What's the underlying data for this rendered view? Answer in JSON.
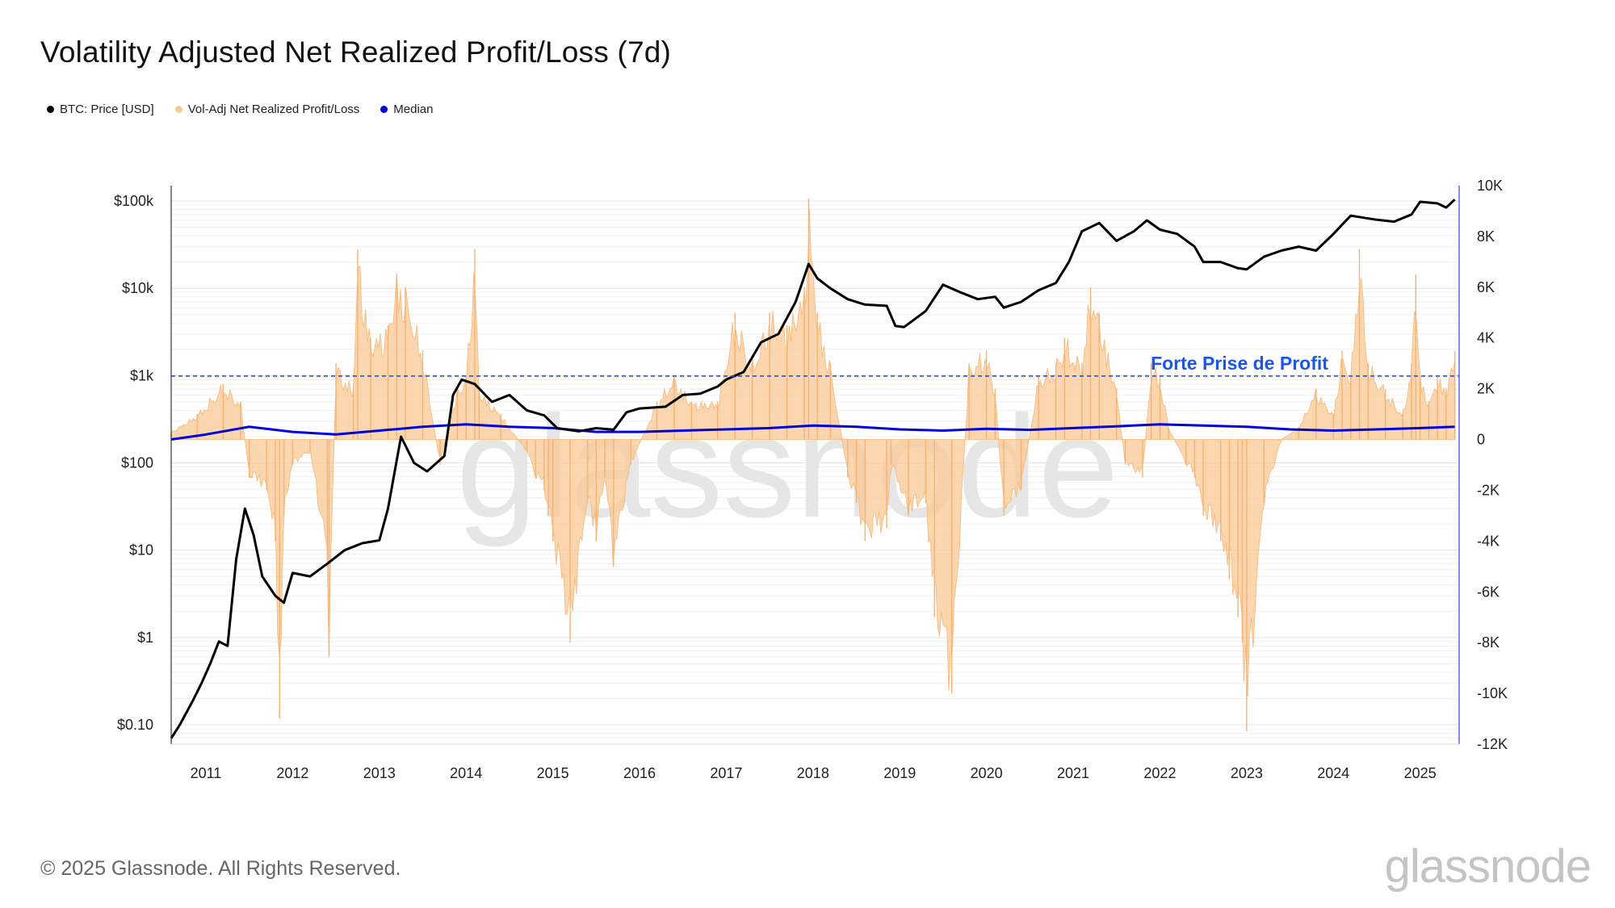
{
  "title": "Volatility Adjusted Net Realized Profit/Loss (7d)",
  "legend": [
    {
      "label": "BTC: Price [USD]",
      "color": "#000000"
    },
    {
      "label": "Vol-Adj Net Realized Profit/Loss",
      "color": "#f9c893"
    },
    {
      "label": "Median",
      "color": "#0000dd"
    }
  ],
  "footer": "© 2025 Glassnode. All Rights Reserved.",
  "brand": "glassnode",
  "watermark": "glassnode",
  "chart_data": {
    "type": "line",
    "x_range": [
      2010.6,
      2025.45
    ],
    "x_ticks": [
      "2011",
      "2012",
      "2013",
      "2014",
      "2015",
      "2016",
      "2017",
      "2018",
      "2019",
      "2020",
      "2021",
      "2022",
      "2023",
      "2024",
      "2025"
    ],
    "y_left": {
      "scale": "log",
      "range": [
        0.06,
        150000
      ],
      "ticks": [
        {
          "value": 0.1,
          "label": "$0.10"
        },
        {
          "value": 1,
          "label": "$1"
        },
        {
          "value": 10,
          "label": "$10"
        },
        {
          "value": 100,
          "label": "$100"
        },
        {
          "value": 1000,
          "label": "$1k"
        },
        {
          "value": 10000,
          "label": "$10k"
        },
        {
          "value": 100000,
          "label": "$100k"
        }
      ]
    },
    "y_right": {
      "scale": "linear",
      "range": [
        -12000,
        10000
      ],
      "ticks": [
        {
          "value": 10000,
          "label": "10K"
        },
        {
          "value": 8000,
          "label": "8K"
        },
        {
          "value": 6000,
          "label": "6K"
        },
        {
          "value": 4000,
          "label": "4K"
        },
        {
          "value": 2000,
          "label": "2K"
        },
        {
          "value": 0,
          "label": "0"
        },
        {
          "value": -2000,
          "label": "-2K"
        },
        {
          "value": -4000,
          "label": "-4K"
        },
        {
          "value": -6000,
          "label": "-6K"
        },
        {
          "value": -8000,
          "label": "-8K"
        },
        {
          "value": -10000,
          "label": "-10K"
        },
        {
          "value": -12000,
          "label": "-12K"
        }
      ]
    },
    "annotation": {
      "label": "Forte Prise de Profit",
      "y_value": 2500,
      "color": "#1a56e8"
    },
    "series": [
      {
        "name": "BTC: Price [USD]",
        "axis": "left",
        "color": "#000000",
        "x": [
          2010.6,
          2010.7,
          2010.85,
          2010.95,
          2011.05,
          2011.15,
          2011.25,
          2011.35,
          2011.45,
          2011.55,
          2011.65,
          2011.8,
          2011.9,
          2012.0,
          2012.2,
          2012.4,
          2012.6,
          2012.8,
          2013.0,
          2013.1,
          2013.25,
          2013.4,
          2013.55,
          2013.75,
          2013.85,
          2013.95,
          2014.1,
          2014.3,
          2014.5,
          2014.7,
          2014.9,
          2015.05,
          2015.3,
          2015.5,
          2015.7,
          2015.85,
          2016.0,
          2016.3,
          2016.5,
          2016.7,
          2016.9,
          2017.0,
          2017.2,
          2017.4,
          2017.6,
          2017.8,
          2017.95,
          2018.05,
          2018.2,
          2018.4,
          2018.6,
          2018.85,
          2018.95,
          2019.05,
          2019.3,
          2019.5,
          2019.7,
          2019.9,
          2020.1,
          2020.2,
          2020.4,
          2020.6,
          2020.8,
          2020.95,
          2021.1,
          2021.3,
          2021.5,
          2021.7,
          2021.85,
          2022.0,
          2022.2,
          2022.4,
          2022.5,
          2022.7,
          2022.9,
          2023.0,
          2023.2,
          2023.4,
          2023.6,
          2023.8,
          2024.0,
          2024.2,
          2024.5,
          2024.7,
          2024.9,
          2025.0,
          2025.2,
          2025.3,
          2025.4
        ],
        "values": [
          0.07,
          0.1,
          0.19,
          0.3,
          0.5,
          0.9,
          0.8,
          8,
          30,
          15,
          5,
          3,
          2.5,
          5.5,
          5,
          7,
          10,
          12,
          13,
          30,
          200,
          100,
          80,
          120,
          600,
          900,
          800,
          500,
          600,
          400,
          350,
          250,
          230,
          250,
          240,
          380,
          420,
          440,
          600,
          620,
          750,
          900,
          1100,
          2400,
          3000,
          7000,
          19000,
          13000,
          10000,
          7500,
          6500,
          6300,
          3700,
          3600,
          5500,
          11000,
          9000,
          7500,
          8000,
          6000,
          7000,
          9500,
          11500,
          20000,
          45000,
          56000,
          35000,
          45000,
          60000,
          47000,
          42000,
          30000,
          20000,
          20000,
          17000,
          16500,
          23000,
          27000,
          30000,
          27000,
          42000,
          68000,
          61000,
          58000,
          70000,
          98000,
          94000,
          84000,
          104000
        ]
      },
      {
        "name": "Vol-Adj Net Realized Profit/Loss",
        "axis": "right",
        "color": "#f9c893",
        "x": [
          2010.6,
          2010.9,
          2011.2,
          2011.4,
          2011.5,
          2011.7,
          2011.8,
          2011.85,
          2011.9,
          2012.0,
          2012.2,
          2012.4,
          2012.42,
          2012.5,
          2012.7,
          2012.75,
          2012.9,
          2013.1,
          2013.2,
          2013.3,
          2013.5,
          2013.7,
          2013.9,
          2014.0,
          2014.1,
          2014.15,
          2014.4,
          2014.7,
          2014.8,
          2014.9,
          2014.95,
          2015.0,
          2015.2,
          2015.4,
          2015.5,
          2015.6,
          2015.7,
          2015.9,
          2016.2,
          2016.4,
          2016.6,
          2016.9,
          2017.1,
          2017.3,
          2017.5,
          2017.7,
          2017.9,
          2017.95,
          2018.05,
          2018.2,
          2018.4,
          2018.5,
          2018.6,
          2018.85,
          2018.9,
          2019.1,
          2019.3,
          2019.4,
          2019.6,
          2019.8,
          2020.0,
          2020.1,
          2020.2,
          2020.4,
          2020.6,
          2020.8,
          2020.9,
          2021.1,
          2021.2,
          2021.3,
          2021.5,
          2021.6,
          2021.8,
          2021.9,
          2022.0,
          2022.1,
          2022.3,
          2022.4,
          2022.5,
          2022.7,
          2022.8,
          2022.9,
          2022.95,
          2023.0,
          2023.2,
          2023.4,
          2023.6,
          2023.8,
          2024.0,
          2024.1,
          2024.2,
          2024.3,
          2024.4,
          2024.6,
          2024.8,
          2024.9,
          2024.95,
          2025.0,
          2025.1,
          2025.2,
          2025.3,
          2025.4
        ],
        "values": [
          300,
          1000,
          2200,
          1500,
          -1500,
          -2000,
          -4000,
          -11000,
          -3000,
          -1000,
          -500,
          -5000,
          -8500,
          3000,
          2000,
          7500,
          4000,
          4500,
          6500,
          6000,
          3500,
          -1000,
          2000,
          2500,
          7500,
          2000,
          1000,
          -500,
          -1500,
          -2000,
          -3000,
          -4000,
          -8000,
          -2500,
          -4000,
          -1500,
          -5000,
          -1000,
          1500,
          2500,
          1500,
          1500,
          5000,
          3000,
          5000,
          4500,
          6000,
          9500,
          5000,
          3000,
          -1500,
          -2500,
          -4000,
          -3500,
          -1000,
          -3000,
          -2500,
          -7000,
          -10000,
          3000,
          3500,
          2000,
          -3000,
          -2000,
          2500,
          3000,
          4000,
          3000,
          6000,
          5000,
          2000,
          -1000,
          -1500,
          3000,
          2500,
          500,
          -1000,
          -1500,
          -3000,
          -4000,
          -5500,
          -7000,
          -8000,
          -11500,
          -2500,
          0,
          500,
          2000,
          1000,
          3500,
          2500,
          7500,
          3000,
          2000,
          1000,
          3000,
          6500,
          2500,
          1500,
          2500,
          2000,
          3500
        ]
      },
      {
        "name": "Median",
        "axis": "right",
        "color": "#0000dd",
        "x": [
          2010.6,
          2011.0,
          2011.5,
          2012.0,
          2012.5,
          2013.0,
          2013.5,
          2014.0,
          2014.5,
          2015.0,
          2015.5,
          2016.0,
          2016.5,
          2017.0,
          2017.5,
          2018.0,
          2018.5,
          2019.0,
          2019.5,
          2020.0,
          2020.5,
          2021.0,
          2021.5,
          2022.0,
          2022.5,
          2023.0,
          2023.5,
          2024.0,
          2024.5,
          2025.0,
          2025.4
        ],
        "values": [
          0,
          200,
          500,
          300,
          200,
          350,
          500,
          600,
          500,
          450,
          300,
          300,
          350,
          400,
          450,
          550,
          500,
          400,
          350,
          420,
          380,
          450,
          520,
          600,
          550,
          500,
          400,
          350,
          400,
          450,
          500
        ]
      }
    ]
  }
}
